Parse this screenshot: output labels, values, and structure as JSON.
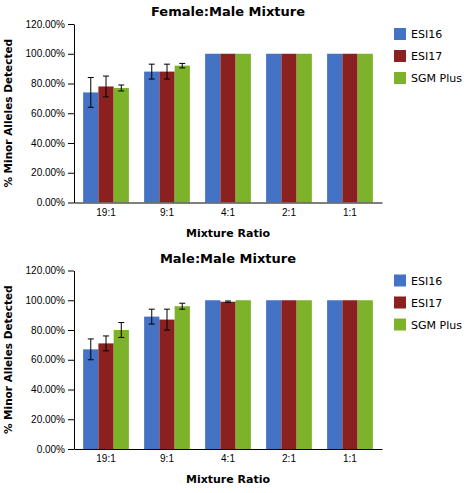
{
  "chart_data": [
    {
      "type": "bar",
      "title": "Female:Male Mixture",
      "xlabel": "Mixture Ratio",
      "ylabel": "% Minor Alleles Detected",
      "categories": [
        "19:1",
        "9:1",
        "4:1",
        "2:1",
        "1:1"
      ],
      "series": [
        {
          "name": "ESI16",
          "color": "#4472C4",
          "values": [
            0.74,
            0.88,
            1.0,
            1.0,
            1.0
          ],
          "errors": [
            0.1,
            0.05,
            0.0,
            0.0,
            0.0
          ]
        },
        {
          "name": "ESI17",
          "color": "#8B2020",
          "values": [
            0.78,
            0.88,
            1.0,
            1.0,
            1.0
          ],
          "errors": [
            0.07,
            0.05,
            0.0,
            0.0,
            0.0
          ]
        },
        {
          "name": "SGM Plus",
          "color": "#7DB32A",
          "values": [
            0.77,
            0.92,
            1.0,
            1.0,
            1.0
          ],
          "errors": [
            0.02,
            0.015,
            0.0,
            0.0,
            0.0
          ]
        }
      ],
      "ylim": [
        0.0,
        1.2
      ],
      "yticks": [
        {
          "value": 0.0,
          "label": "0.00%"
        },
        {
          "value": 0.2,
          "label": "20.00%"
        },
        {
          "value": 0.4,
          "label": "40.00%"
        },
        {
          "value": 0.6,
          "label": "60.00%"
        },
        {
          "value": 0.8,
          "label": "80.00%"
        },
        {
          "value": 1.0,
          "label": "100.00%"
        },
        {
          "value": 1.2,
          "label": "120.00%"
        }
      ],
      "legend": "right",
      "grid": false
    },
    {
      "type": "bar",
      "title": "Male:Male Mixture",
      "xlabel": "Mixture Ratio",
      "ylabel": "% Minor Alleles Detected",
      "categories": [
        "19:1",
        "9:1",
        "4:1",
        "2:1",
        "1:1"
      ],
      "series": [
        {
          "name": "ESI16",
          "color": "#4472C4",
          "values": [
            0.67,
            0.89,
            1.0,
            1.0,
            1.0
          ],
          "errors": [
            0.07,
            0.05,
            0.0,
            0.0,
            0.0
          ]
        },
        {
          "name": "ESI17",
          "color": "#8B2020",
          "values": [
            0.71,
            0.87,
            0.99,
            1.0,
            1.0
          ],
          "errors": [
            0.05,
            0.07,
            0.005,
            0.0,
            0.0
          ]
        },
        {
          "name": "SGM Plus",
          "color": "#7DB32A",
          "values": [
            0.8,
            0.96,
            1.0,
            1.0,
            1.0
          ],
          "errors": [
            0.05,
            0.02,
            0.0,
            0.0,
            0.0
          ]
        }
      ],
      "ylim": [
        0.0,
        1.2
      ],
      "yticks": [
        {
          "value": 0.0,
          "label": "0.00%"
        },
        {
          "value": 0.2,
          "label": "20.00%"
        },
        {
          "value": 0.4,
          "label": "40.00%"
        },
        {
          "value": 0.6,
          "label": "60.00%"
        },
        {
          "value": 0.8,
          "label": "80.00%"
        },
        {
          "value": 1.0,
          "label": "100.00%"
        },
        {
          "value": 1.2,
          "label": "120.00%"
        }
      ],
      "legend": "right",
      "grid": false
    }
  ]
}
